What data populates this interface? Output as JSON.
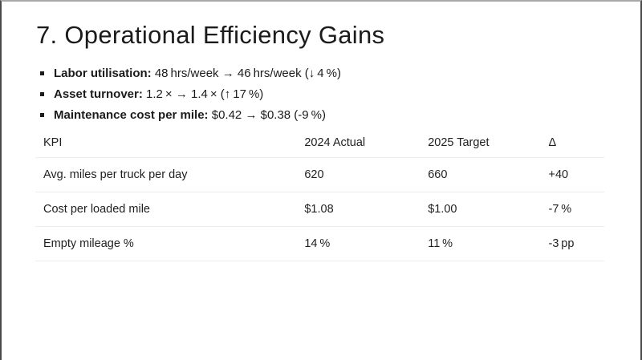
{
  "slide": {
    "title": "7. Operational Efficiency Gains",
    "bullets": [
      {
        "label": "Labor utilisation:",
        "text": "48 hrs/week → 46 hrs/week (↓ 4 %)"
      },
      {
        "label": "Asset turnover:",
        "text": "1.2 × → 1.4 × (↑ 17 %)"
      },
      {
        "label": "Maintenance cost per mile:",
        "text": "$0.42 → $0.38 (-9 %)"
      }
    ],
    "table": {
      "headers": [
        "KPI",
        "2024 Actual",
        "2025 Target",
        "Δ"
      ],
      "rows": [
        [
          "Avg. miles per truck per day",
          "620",
          "660",
          "+40"
        ],
        [
          "Cost per loaded mile",
          "$1.08",
          "$1.00",
          "-7 %"
        ],
        [
          "Empty mileage %",
          "14 %",
          "11 %",
          "-3 pp"
        ]
      ]
    },
    "colors": {
      "text": "#1b1b1b",
      "rule": "#ececec",
      "border_side": "#4a4a4a",
      "border_top": "#a9a9a9",
      "background": "#ffffff"
    }
  }
}
